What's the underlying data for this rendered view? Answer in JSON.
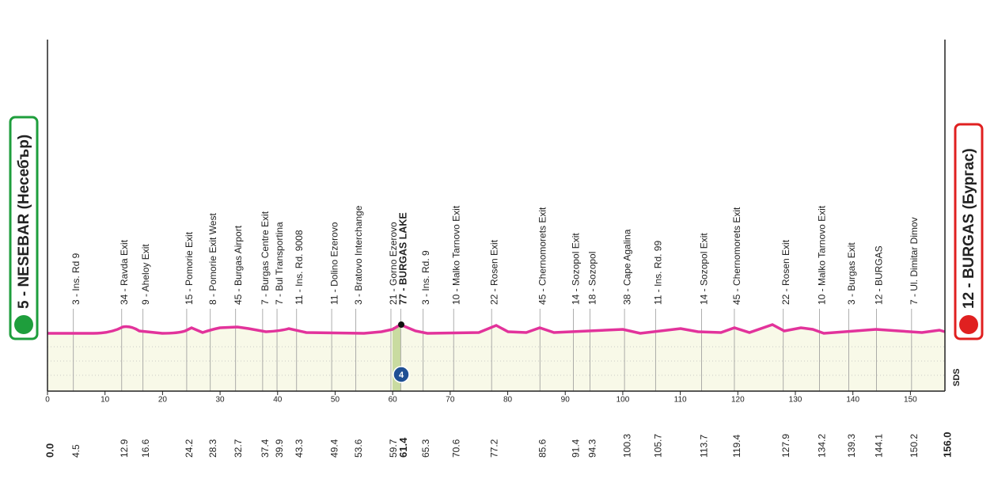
{
  "chart_data": {
    "type": "stage-profile",
    "start": {
      "name": "5 - NESEBAR (Несебър)",
      "km": {
        "value": 0,
        "label": "0.0"
      }
    },
    "finish": {
      "name": "12 - BURGAS (Бургас)",
      "km": {
        "value": 156,
        "label": "156.0"
      }
    },
    "xlim": [
      0,
      156
    ],
    "xticks": [
      0,
      10,
      20,
      30,
      40,
      50,
      60,
      70,
      80,
      90,
      100,
      110,
      120,
      130,
      140,
      150
    ],
    "line_color": "#e2339b",
    "sprint_badge": "4",
    "logo": "SDS",
    "waypoints": [
      {
        "km": 4.5,
        "label": "3 - Ins. Rd 9"
      },
      {
        "km": 12.9,
        "label": "34 - Ravda Exit"
      },
      {
        "km": 16.6,
        "label": "9 - Aheloy Exit"
      },
      {
        "km": 24.2,
        "label": "15 - Pomorie Exit"
      },
      {
        "km": 28.3,
        "label": "8 - Pomorie Exit West"
      },
      {
        "km": 32.7,
        "label": "45 - Burgas Airport"
      },
      {
        "km": 37.4,
        "label": "7 - Burgas Centre Exit"
      },
      {
        "km": 39.9,
        "label": "7 - Bul Transportina"
      },
      {
        "km": 43.3,
        "label": "11 - Ins. Rd. 9008"
      },
      {
        "km": 49.4,
        "label": "11 - Dolino Ezerovo"
      },
      {
        "km": 53.6,
        "label": "3 - Bratovo Interchange"
      },
      {
        "km": 59.7,
        "label": "21 - Gorno Ezerovo"
      },
      {
        "km": 61.4,
        "label": "77 - BURGAS LAKE",
        "bold": true
      },
      {
        "km": 65.3,
        "label": "3 - Ins. Rd. 9"
      },
      {
        "km": 70.6,
        "label": "10 - Malko Tarnovo Exit"
      },
      {
        "km": 77.2,
        "label": "22 - Rosen Exit"
      },
      {
        "km": 85.6,
        "label": "45 - Chernomorets Exit"
      },
      {
        "km": 91.4,
        "label": "14 - Sozopol Exit"
      },
      {
        "km": 94.3,
        "label": "18 - Sozopol"
      },
      {
        "km": 100.3,
        "label": "38 - Cape Agalina"
      },
      {
        "km": 105.7,
        "label": "11 - Ins. Rd. 99"
      },
      {
        "km": 113.7,
        "label": "14 - Sozopol Exit"
      },
      {
        "km": 119.4,
        "label": "45 - Chernomorets Exit"
      },
      {
        "km": 127.9,
        "label": "22 - Rosen Exit"
      },
      {
        "km": 134.2,
        "label": "10 - Malko Tarnovo Exit"
      },
      {
        "km": 139.3,
        "label": "3 - Burgas Exit"
      },
      {
        "km": 144.1,
        "label": "12 - BURGAS"
      },
      {
        "km": 150.2,
        "label": "7 - Ul. Dimitar Dimov"
      }
    ]
  }
}
